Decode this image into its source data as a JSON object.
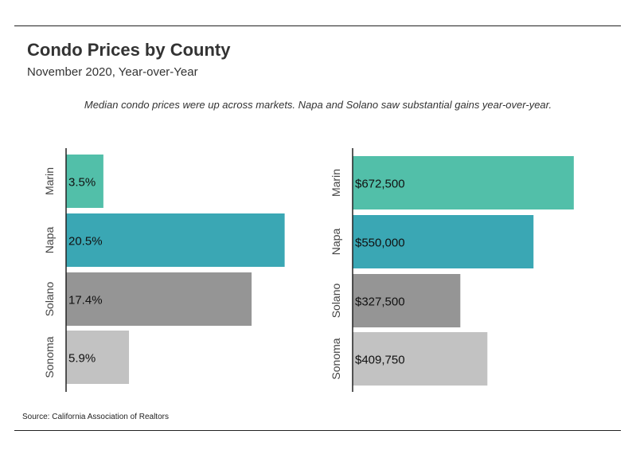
{
  "header": {
    "title": "Condo Prices by County",
    "subtitle": "November 2020, Year-over-Year",
    "note": "Median condo prices were up across markets. Napa and Solano saw substantial gains year-over-year."
  },
  "footer": {
    "source": "Source:  California Association of Realtors"
  },
  "chart_data": [
    {
      "type": "bar",
      "orientation": "horizontal",
      "categories": [
        "Marin",
        "Napa",
        "Solano",
        "Sonoma"
      ],
      "values": [
        3.5,
        20.5,
        17.4,
        5.9
      ],
      "labels": [
        "3.5%",
        "20.5%",
        "17.4%",
        "5.9%"
      ],
      "colors": [
        "#52bfa9",
        "#3aa7b4",
        "#959595",
        "#c2c2c2"
      ],
      "xlim": [
        0,
        21.5
      ],
      "grid": false,
      "legend": "none"
    },
    {
      "type": "bar",
      "orientation": "horizontal",
      "categories": [
        "Marin",
        "Napa",
        "Solano",
        "Sonoma"
      ],
      "values": [
        672500,
        550000,
        327500,
        409750
      ],
      "labels": [
        "$672,500",
        "$550,000",
        "$327,500",
        "$409,750"
      ],
      "colors": [
        "#52bfa9",
        "#3aa7b4",
        "#959595",
        "#c2c2c2"
      ],
      "xlim": [
        0,
        760000
      ],
      "grid": false,
      "legend": "none"
    }
  ]
}
